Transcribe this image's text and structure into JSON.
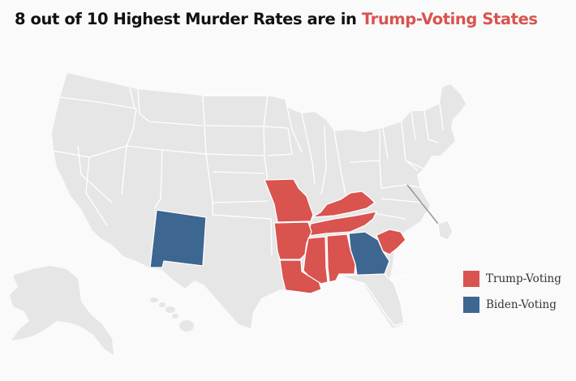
{
  "title": {
    "prefix": "8 out of 10 Highest Murder Rates are in ",
    "highlight": "Trump-Voting States"
  },
  "colors": {
    "trump": "#d9534f",
    "biden": "#3d6690",
    "other": "#e6e6e6",
    "border": "#ffffff",
    "background": "#fafafa"
  },
  "legend": {
    "items": [
      {
        "label": "Trump-Voting",
        "color": "#d9534f"
      },
      {
        "label": "Biden-Voting",
        "color": "#3d6690"
      }
    ]
  },
  "states": {
    "trump": [
      "Missouri",
      "Arkansas",
      "Louisiana",
      "Mississippi",
      "Alabama",
      "Tennessee",
      "Kentucky",
      "South Carolina"
    ],
    "biden": [
      "New Mexico",
      "Georgia"
    ]
  }
}
